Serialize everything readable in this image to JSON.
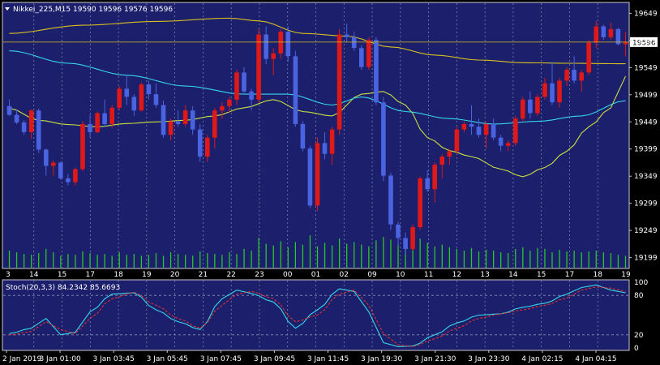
{
  "main_title": "Nikkei_225,M15 19590 19596 19576 19596",
  "stoch_title": "Stoch(20,3,3) 84.2342 85.6693",
  "colors": {
    "background": "#000000",
    "panel": "#1c1f6b",
    "grid": "#8a8fb0",
    "frame": "#c8c8d0",
    "bull": "#e01818",
    "bear": "#4a63e0",
    "ma_fast": "#c8e040",
    "ma_mid": "#36d6e8",
    "ma_slow": "#d8c020",
    "volume": "#28c828",
    "stoch_main": "#36d6e8",
    "stoch_signal": "#e03030",
    "price_line": "#d8c020",
    "text": "#ffffff"
  },
  "chart_data": [
    {
      "type": "candlestick",
      "title": "Nikkei_225,M15 19590 19596 19576 19596",
      "ylim": [
        19179,
        19669
      ],
      "y_ticks": [
        19649,
        19599,
        19549,
        19499,
        19449,
        19399,
        19349,
        19299,
        19249,
        19199
      ],
      "x_ticks": [
        "3",
        "14",
        "15",
        "17",
        "18",
        "19",
        "20",
        "21",
        "22",
        "23",
        "00",
        "01",
        "02",
        "09",
        "10",
        "11",
        "12",
        "13",
        "14",
        "15",
        "17",
        "18",
        "19"
      ],
      "current_price": 19596,
      "candles": [
        [
          19478,
          19490,
          19460,
          19462
        ],
        [
          19462,
          19472,
          19445,
          19448
        ],
        [
          19448,
          19452,
          19425,
          19430
        ],
        [
          19430,
          19472,
          19418,
          19470
        ],
        [
          19470,
          19474,
          19392,
          19398
        ],
        [
          19398,
          19400,
          19350,
          19368
        ],
        [
          19368,
          19378,
          19350,
          19374
        ],
        [
          19374,
          19376,
          19342,
          19345
        ],
        [
          19345,
          19353,
          19332,
          19338
        ],
        [
          19338,
          19365,
          19332,
          19362
        ],
        [
          19362,
          19450,
          19358,
          19445
        ],
        [
          19445,
          19462,
          19420,
          19430
        ],
        [
          19430,
          19468,
          19428,
          19465
        ],
        [
          19465,
          19490,
          19440,
          19445
        ],
        [
          19445,
          19480,
          19438,
          19475
        ],
        [
          19475,
          19515,
          19470,
          19510
        ],
        [
          19510,
          19535,
          19480,
          19495
        ],
        [
          19495,
          19500,
          19460,
          19470
        ],
        [
          19470,
          19522,
          19468,
          19518
        ],
        [
          19518,
          19525,
          19490,
          19500
        ],
        [
          19500,
          19520,
          19475,
          19480
        ],
        [
          19480,
          19488,
          19420,
          19425
        ],
        [
          19425,
          19455,
          19415,
          19450
        ],
        [
          19450,
          19470,
          19440,
          19445
        ],
        [
          19445,
          19480,
          19440,
          19470
        ],
        [
          19470,
          19478,
          19425,
          19435
        ],
        [
          19435,
          19445,
          19375,
          19385
        ],
        [
          19385,
          19425,
          19375,
          19420
        ],
        [
          19420,
          19475,
          19400,
          19470
        ],
        [
          19470,
          19485,
          19455,
          19478
        ],
        [
          19478,
          19495,
          19465,
          19490
        ],
        [
          19490,
          19545,
          19480,
          19540
        ],
        [
          19540,
          19550,
          19500,
          19505
        ],
        [
          19505,
          19510,
          19470,
          19490
        ],
        [
          19490,
          19620,
          19485,
          19610
        ],
        [
          19610,
          19625,
          19555,
          19565
        ],
        [
          19565,
          19585,
          19535,
          19575
        ],
        [
          19575,
          19620,
          19565,
          19615
        ],
        [
          19615,
          19625,
          19560,
          19570
        ],
        [
          19570,
          19580,
          19440,
          19445
        ],
        [
          19445,
          19450,
          19395,
          19400
        ],
        [
          19400,
          19405,
          19290,
          19295
        ],
        [
          19295,
          19420,
          19285,
          19410
        ],
        [
          19410,
          19430,
          19380,
          19390
        ],
        [
          19390,
          19440,
          19370,
          19435
        ],
        [
          19435,
          19620,
          19425,
          19610
        ],
        [
          19610,
          19630,
          19595,
          19605
        ],
        [
          19605,
          19615,
          19580,
          19585
        ],
        [
          19585,
          19590,
          19545,
          19550
        ],
        [
          19550,
          19605,
          19545,
          19600
        ],
        [
          19600,
          19605,
          19480,
          19485
        ],
        [
          19485,
          19495,
          19340,
          19350
        ],
        [
          19350,
          19355,
          19250,
          19260
        ],
        [
          19260,
          19265,
          19220,
          19235
        ],
        [
          19235,
          19245,
          19205,
          19215
        ],
        [
          19215,
          19260,
          19212,
          19255
        ],
        [
          19255,
          19348,
          19250,
          19345
        ],
        [
          19345,
          19360,
          19320,
          19325
        ],
        [
          19325,
          19375,
          19300,
          19370
        ],
        [
          19370,
          19390,
          19345,
          19385
        ],
        [
          19385,
          19400,
          19370,
          19395
        ],
        [
          19395,
          19440,
          19390,
          19435
        ],
        [
          19435,
          19450,
          19430,
          19445
        ],
        [
          19445,
          19480,
          19425,
          19440
        ],
        [
          19440,
          19455,
          19420,
          19425
        ],
        [
          19425,
          19450,
          19400,
          19445
        ],
        [
          19445,
          19455,
          19415,
          19420
        ],
        [
          19420,
          19425,
          19395,
          19405
        ],
        [
          19405,
          19415,
          19395,
          19410
        ],
        [
          19410,
          19460,
          19405,
          19455
        ],
        [
          19455,
          19495,
          19450,
          19490
        ],
        [
          19490,
          19505,
          19455,
          19465
        ],
        [
          19465,
          19500,
          19460,
          19495
        ],
        [
          19495,
          19530,
          19490,
          19520
        ],
        [
          19520,
          19560,
          19480,
          19485
        ],
        [
          19485,
          19530,
          19475,
          19525
        ],
        [
          19525,
          19550,
          19515,
          19545
        ],
        [
          19545,
          19570,
          19520,
          19525
        ],
        [
          19525,
          19545,
          19505,
          19540
        ],
        [
          19540,
          19600,
          19535,
          19595
        ],
        [
          19595,
          19635,
          19585,
          19625
        ],
        [
          19625,
          19628,
          19600,
          19605
        ],
        [
          19605,
          19632,
          19600,
          19620
        ],
        [
          19620,
          19622,
          19590,
          19592
        ],
        [
          19592,
          19615,
          19570,
          19596
        ]
      ],
      "volume": [
        20,
        18,
        16,
        15,
        17,
        22,
        18,
        14,
        16,
        15,
        19,
        17,
        15,
        16,
        14,
        18,
        15,
        16,
        14,
        15,
        17,
        14,
        18,
        16,
        15,
        14,
        19,
        17,
        16,
        15,
        18,
        16,
        22,
        20,
        35,
        28,
        26,
        31,
        24,
        30,
        27,
        38,
        25,
        29,
        26,
        34,
        28,
        30,
        27,
        25,
        32,
        36,
        33,
        28,
        30,
        26,
        34,
        29,
        25,
        27,
        24,
        22,
        20,
        23,
        19,
        21,
        20,
        18,
        17,
        22,
        24,
        20,
        23,
        22,
        18,
        21,
        19,
        20,
        18,
        19,
        20,
        18,
        17,
        15,
        14
      ],
      "indicators": [
        {
          "name": "MA fast",
          "anchors": [
            [
              0,
              19474
            ],
            [
              4,
              19452
            ],
            [
              8,
              19444
            ],
            [
              12,
              19440
            ],
            [
              16,
              19446
            ],
            [
              20,
              19449
            ],
            [
              24,
              19452
            ],
            [
              28,
              19460
            ],
            [
              32,
              19475
            ],
            [
              36,
              19490
            ],
            [
              40,
              19468
            ],
            [
              44,
              19460
            ],
            [
              48,
              19500
            ],
            [
              51,
              19505
            ],
            [
              54,
              19480
            ],
            [
              57,
              19420
            ],
            [
              60,
              19396
            ],
            [
              63,
              19385
            ],
            [
              67,
              19362
            ],
            [
              70,
              19348
            ],
            [
              73,
              19365
            ],
            [
              76,
              19395
            ],
            [
              79,
              19440
            ],
            [
              82,
              19475
            ],
            [
              84,
              19533
            ]
          ]
        },
        {
          "name": "MA mid",
          "anchors": [
            [
              0,
              19580
            ],
            [
              8,
              19557
            ],
            [
              16,
              19535
            ],
            [
              24,
              19515
            ],
            [
              32,
              19500
            ],
            [
              38,
              19500
            ],
            [
              44,
              19480
            ],
            [
              48,
              19495
            ],
            [
              54,
              19468
            ],
            [
              60,
              19455
            ],
            [
              66,
              19445
            ],
            [
              72,
              19450
            ],
            [
              78,
              19460
            ],
            [
              84,
              19488
            ]
          ]
        },
        {
          "name": "MA slow",
          "anchors": [
            [
              0,
              19612
            ],
            [
              10,
              19627
            ],
            [
              20,
              19634
            ],
            [
              30,
              19640
            ],
            [
              34,
              19635
            ],
            [
              40,
              19612
            ],
            [
              46,
              19607
            ],
            [
              52,
              19587
            ],
            [
              58,
              19572
            ],
            [
              64,
              19563
            ],
            [
              70,
              19558
            ],
            [
              76,
              19557
            ],
            [
              84,
              19556
            ]
          ]
        }
      ]
    },
    {
      "type": "line",
      "title": "Stoch(20,3,3) 84.2342 85.6693",
      "ylim": [
        0,
        100
      ],
      "y_ticks": [
        100,
        80,
        20,
        0
      ],
      "levels": [
        80,
        20
      ],
      "x_ticks": [
        "2 Jan 2019",
        "3 Jan 01:00",
        "3 Jan 03:45",
        "3 Jan 05:45",
        "3 Jan 07:45",
        "3 Jan 09:45",
        "3 Jan 11:45",
        "3 Jan 19:30",
        "3 Jan 21:30",
        "3 Jan 23:30",
        "4 Jan 02:15",
        "4 Jan 04:15"
      ],
      "series": [
        {
          "name": "main",
          "color": "#36d6e8",
          "anchors": [
            [
              0,
              22
            ],
            [
              3,
              30
            ],
            [
              5,
              45
            ],
            [
              7,
              20
            ],
            [
              9,
              24
            ],
            [
              11,
              55
            ],
            [
              14,
              82
            ],
            [
              17,
              84
            ],
            [
              20,
              58
            ],
            [
              23,
              40
            ],
            [
              26,
              28
            ],
            [
              29,
              75
            ],
            [
              31,
              88
            ],
            [
              33,
              83
            ],
            [
              36,
              70
            ],
            [
              39,
              30
            ],
            [
              42,
              58
            ],
            [
              45,
              90
            ],
            [
              47,
              86
            ],
            [
              49,
              55
            ],
            [
              51,
              8
            ],
            [
              53,
              2
            ],
            [
              55,
              3
            ],
            [
              58,
              20
            ],
            [
              61,
              38
            ],
            [
              64,
              50
            ],
            [
              67,
              52
            ],
            [
              70,
              62
            ],
            [
              73,
              68
            ],
            [
              76,
              82
            ],
            [
              78,
              92
            ],
            [
              80,
              96
            ],
            [
              82,
              88
            ],
            [
              84,
              84
            ]
          ]
        },
        {
          "name": "signal",
          "color": "#e03030",
          "anchors": [
            [
              0,
              20
            ],
            [
              3,
              25
            ],
            [
              5,
              40
            ],
            [
              7,
              28
            ],
            [
              9,
              22
            ],
            [
              11,
              45
            ],
            [
              14,
              75
            ],
            [
              17,
              85
            ],
            [
              20,
              65
            ],
            [
              23,
              45
            ],
            [
              26,
              30
            ],
            [
              29,
              65
            ],
            [
              31,
              82
            ],
            [
              33,
              86
            ],
            [
              36,
              75
            ],
            [
              39,
              40
            ],
            [
              42,
              50
            ],
            [
              45,
              82
            ],
            [
              47,
              88
            ],
            [
              49,
              65
            ],
            [
              51,
              22
            ],
            [
              53,
              5
            ],
            [
              55,
              2
            ],
            [
              58,
              14
            ],
            [
              61,
              30
            ],
            [
              64,
              45
            ],
            [
              67,
              52
            ],
            [
              70,
              58
            ],
            [
              73,
              65
            ],
            [
              76,
              76
            ],
            [
              78,
              88
            ],
            [
              80,
              93
            ],
            [
              82,
              91
            ],
            [
              84,
              86
            ]
          ]
        }
      ]
    }
  ]
}
